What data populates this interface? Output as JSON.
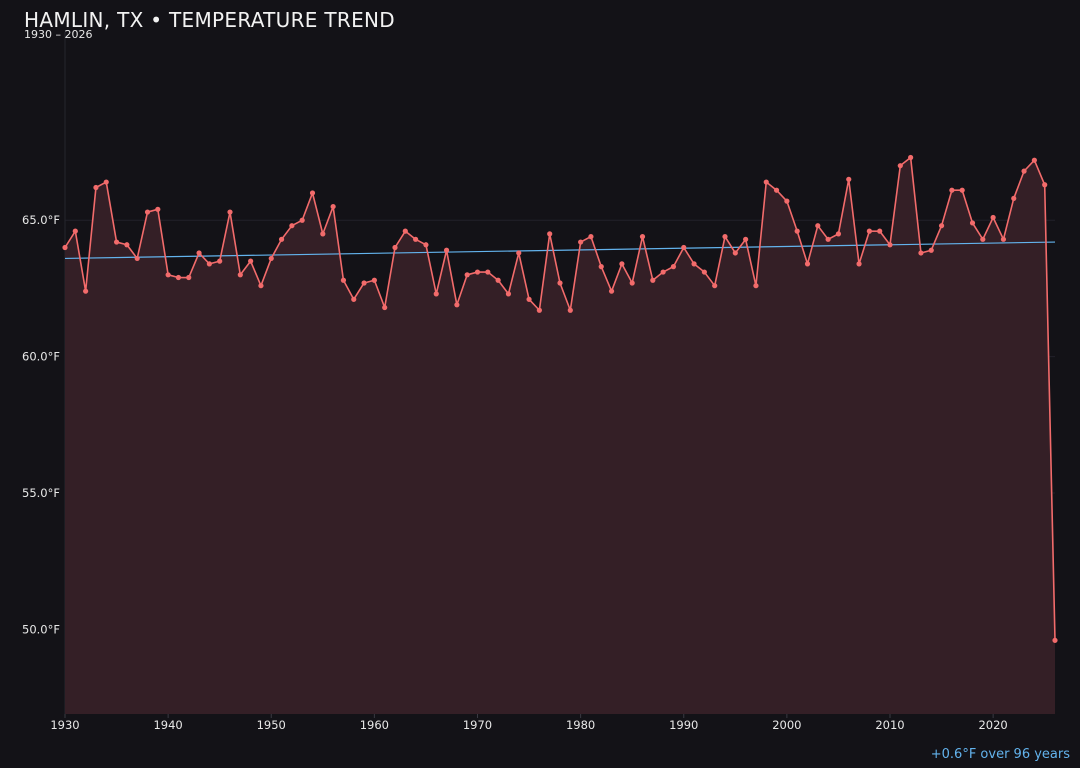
{
  "title": "HAMLIN, TX • TEMPERATURE TREND",
  "subtitle": "1930 – 2026",
  "trend_note": "+0.6°F over 96 years",
  "colors": {
    "background": "#131217",
    "series_line": "#f26b6b",
    "area_fill": "#341f26",
    "trend_line": "#63b3ed",
    "grid": "#22212a",
    "text": "#e8e8e8"
  },
  "chart_data": {
    "type": "line",
    "area_fill": true,
    "grid": true,
    "xlim": [
      1930,
      2026
    ],
    "ylim": [
      46.9,
      71.9
    ],
    "x_ticks": [
      1930,
      1940,
      1950,
      1960,
      1970,
      1980,
      1990,
      2000,
      2010,
      2020
    ],
    "x_tick_labels": [
      "1930",
      "1940",
      "1950",
      "1960",
      "1970",
      "1980",
      "1990",
      "2000",
      "2010",
      "2020"
    ],
    "y_ticks": [
      50,
      55,
      60,
      65
    ],
    "y_tick_labels": [
      "50.0°F",
      "55.0°F",
      "60.0°F",
      "65.0°F"
    ],
    "x": [
      1930,
      1931,
      1932,
      1933,
      1934,
      1935,
      1936,
      1937,
      1938,
      1939,
      1940,
      1941,
      1942,
      1943,
      1944,
      1945,
      1946,
      1947,
      1948,
      1949,
      1950,
      1951,
      1952,
      1953,
      1954,
      1955,
      1956,
      1957,
      1958,
      1959,
      1960,
      1961,
      1962,
      1963,
      1964,
      1965,
      1966,
      1967,
      1968,
      1969,
      1970,
      1971,
      1972,
      1973,
      1974,
      1975,
      1976,
      1977,
      1978,
      1979,
      1980,
      1981,
      1982,
      1983,
      1984,
      1985,
      1986,
      1987,
      1988,
      1989,
      1990,
      1991,
      1992,
      1993,
      1994,
      1995,
      1996,
      1997,
      1998,
      1999,
      2000,
      2001,
      2002,
      2003,
      2004,
      2005,
      2006,
      2007,
      2008,
      2009,
      2010,
      2011,
      2012,
      2013,
      2014,
      2015,
      2016,
      2017,
      2018,
      2019,
      2020,
      2021,
      2022,
      2023,
      2024,
      2025,
      2026
    ],
    "y": [
      64.0,
      64.6,
      62.4,
      66.2,
      66.4,
      64.2,
      64.1,
      63.6,
      65.3,
      65.4,
      63.0,
      62.9,
      62.9,
      63.8,
      63.4,
      63.5,
      65.3,
      63.0,
      63.5,
      62.6,
      63.6,
      64.3,
      64.8,
      65.0,
      66.0,
      64.5,
      65.5,
      62.8,
      62.1,
      62.7,
      62.8,
      61.8,
      64.0,
      64.6,
      64.3,
      64.1,
      62.3,
      63.9,
      61.9,
      63.0,
      63.1,
      63.1,
      62.8,
      62.3,
      63.8,
      62.1,
      61.7,
      64.5,
      62.7,
      61.7,
      64.2,
      64.4,
      63.3,
      62.4,
      63.4,
      62.7,
      64.4,
      62.8,
      63.1,
      63.3,
      64.0,
      63.4,
      63.1,
      62.6,
      64.4,
      63.8,
      64.3,
      62.6,
      66.4,
      66.1,
      65.7,
      64.6,
      63.4,
      64.8,
      64.3,
      64.5,
      66.5,
      63.4,
      64.6,
      64.6,
      64.1,
      67.0,
      67.3,
      63.8,
      63.9,
      64.8,
      66.1,
      66.1,
      64.9,
      64.3,
      65.1,
      64.3,
      65.8,
      66.8,
      67.2,
      66.3,
      49.6
    ],
    "trend": {
      "x": [
        1930,
        2026
      ],
      "y": [
        63.6,
        64.2
      ]
    }
  }
}
